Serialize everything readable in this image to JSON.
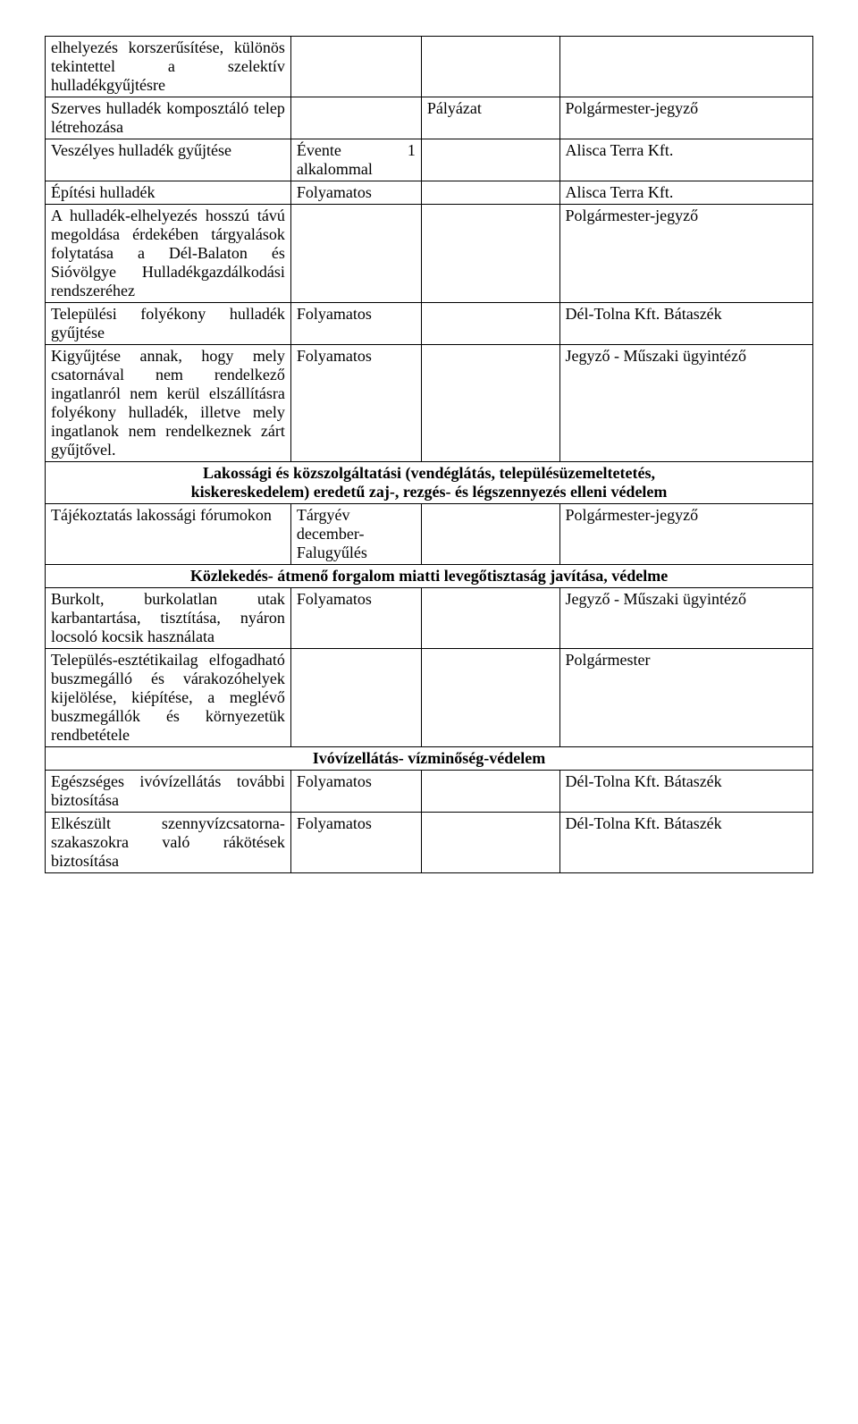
{
  "rows": [
    {
      "c1": "elhelyezés korszerűsítése, különös tekintettel a szelektív hulladékgyűjtésre",
      "c2": "",
      "c3": "",
      "c4": ""
    },
    {
      "c1": "Szerves hulladék komposztáló telep létrehozása",
      "c2": "",
      "c3": "Pályázat",
      "c4": "Polgármester-jegyző"
    },
    {
      "c1": "Veszélyes hulladék gyűjtése",
      "c2": "Évente 1 alkalommal",
      "c3": "",
      "c4": "Alisca Terra Kft."
    },
    {
      "c1": "Építési hulladék",
      "c2": "Folyamatos",
      "c3": "",
      "c4": "Alisca Terra Kft."
    },
    {
      "c1": "A hulladék-elhelyezés hosszú távú megoldása érdekében tárgyalások folytatása a Dél-Balaton és Sióvölgye Hulladékgazdálkodási rendszeréhez",
      "c2": "",
      "c3": "",
      "c4": "Polgármester-jegyző"
    },
    {
      "c1": "Települési folyékony hulladék gyűjtése",
      "c2": "Folyamatos",
      "c3": "",
      "c4": "Dél-Tolna Kft. Bátaszék"
    },
    {
      "c1": "Kigyűjtése annak, hogy mely csatornával nem rendelkező ingatlanról nem kerül elszállításra folyékony hulladék, illetve mely ingatlanok nem rendelkeznek zárt gyűjtővel.",
      "c2": "Folyamatos",
      "c3": "",
      "c4": "Jegyző - Műszaki ügyintéző"
    }
  ],
  "section1": {
    "title_l1": "Lakossági és közszolgáltatási (vendéglátás, településüzemeltetetés,",
    "title_l2": "kiskereskedelem) eredetű zaj-, rezgés- és légszennyezés elleni védelem"
  },
  "rows2": [
    {
      "c1": "Tájékoztatás lakossági fórumokon",
      "c2": "Tárgyév december- Falugyűlés",
      "c3": "",
      "c4": "Polgármester-jegyző"
    }
  ],
  "section2": {
    "title": "Közlekedés- átmenő forgalom miatti levegőtisztaság javítása, védelme"
  },
  "rows3": [
    {
      "c1": "Burkolt, burkolatlan utak karbantartása, tisztítása, nyáron locsoló kocsik használata",
      "c2": "Folyamatos",
      "c3": "",
      "c4": "Jegyző - Műszaki ügyintéző"
    },
    {
      "c1": "Település-esztétikailag elfogadható buszmegálló és várakozóhelyek kijelölése, kiépítése, a meglévő buszmegállók és környezetük rendbetétele",
      "c2": "",
      "c3": "",
      "c4": "Polgármester"
    }
  ],
  "section3": {
    "title": "Ivóvízellátás- vízminőség-védelem"
  },
  "rows4": [
    {
      "c1": "Egészséges ivóvízellátás további biztosítása",
      "c2": "Folyamatos",
      "c3": "",
      "c4": "Dél-Tolna Kft. Bátaszék"
    },
    {
      "c1": "Elkészült szennyvízcsatorna-szakaszokra való rákötések biztosítása",
      "c2": "Folyamatos",
      "c3": "",
      "c4": "Dél-Tolna Kft. Bátaszék"
    }
  ]
}
